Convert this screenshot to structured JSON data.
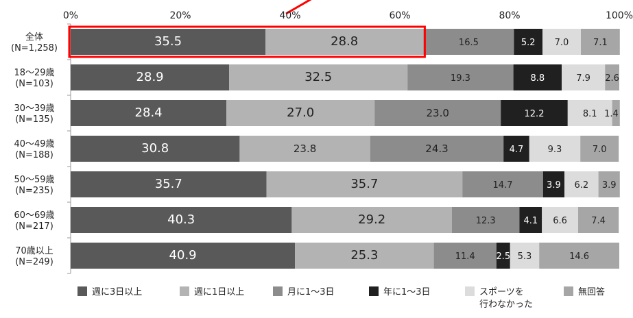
{
  "chart_data": {
    "type": "bar",
    "orientation": "horizontal",
    "stacked": true,
    "percent_stacked": true,
    "x_ticks": [
      "0%",
      "20%",
      "40%",
      "60%",
      "80%",
      "100%"
    ],
    "xlim": [
      0,
      100
    ],
    "grid": false,
    "legend_position": "bottom",
    "categories": [
      [
        "全体",
        "(N=1,258)"
      ],
      [
        "18～29歳",
        "(N=103)"
      ],
      [
        "30～39歳",
        "(N=135)"
      ],
      [
        "40～49歳",
        "(N=188)"
      ],
      [
        "50～59歳",
        "(N=235)"
      ],
      [
        "60～69歳",
        "(N=217)"
      ],
      [
        "70歳以上",
        "(N=249)"
      ]
    ],
    "series": [
      {
        "name": "週に3日以上",
        "color": "#595959",
        "label_color": "#ffffff",
        "values": [
          35.5,
          28.9,
          28.4,
          30.8,
          35.7,
          40.3,
          40.9
        ]
      },
      {
        "name": "週に1日以上",
        "color": "#b3b3b3",
        "label_color": "#222222",
        "values": [
          28.8,
          32.5,
          27.0,
          23.8,
          35.7,
          29.2,
          25.3
        ]
      },
      {
        "name": "月に1～3日",
        "color": "#8c8c8c",
        "label_color": "#222222",
        "values": [
          16.5,
          19.3,
          23.0,
          24.3,
          14.7,
          12.3,
          11.4
        ]
      },
      {
        "name": "年に1～3日",
        "color": "#202020",
        "label_color": "#ffffff",
        "values": [
          5.2,
          8.8,
          12.2,
          4.7,
          3.9,
          4.1,
          2.5
        ]
      },
      {
        "name": "スポーツを\n行わなかった",
        "color": "#dcdcdc",
        "label_color": "#222222",
        "values": [
          7.0,
          7.9,
          8.1,
          9.3,
          6.2,
          6.6,
          5.3
        ]
      },
      {
        "name": "無回答",
        "color": "#a6a6a6",
        "label_color": "#222222",
        "values": [
          7.1,
          2.6,
          1.4,
          7.0,
          3.9,
          7.4,
          14.6
        ]
      }
    ],
    "highlight": {
      "row": 0,
      "series": [
        0,
        1
      ],
      "color": "#ff0000"
    }
  }
}
